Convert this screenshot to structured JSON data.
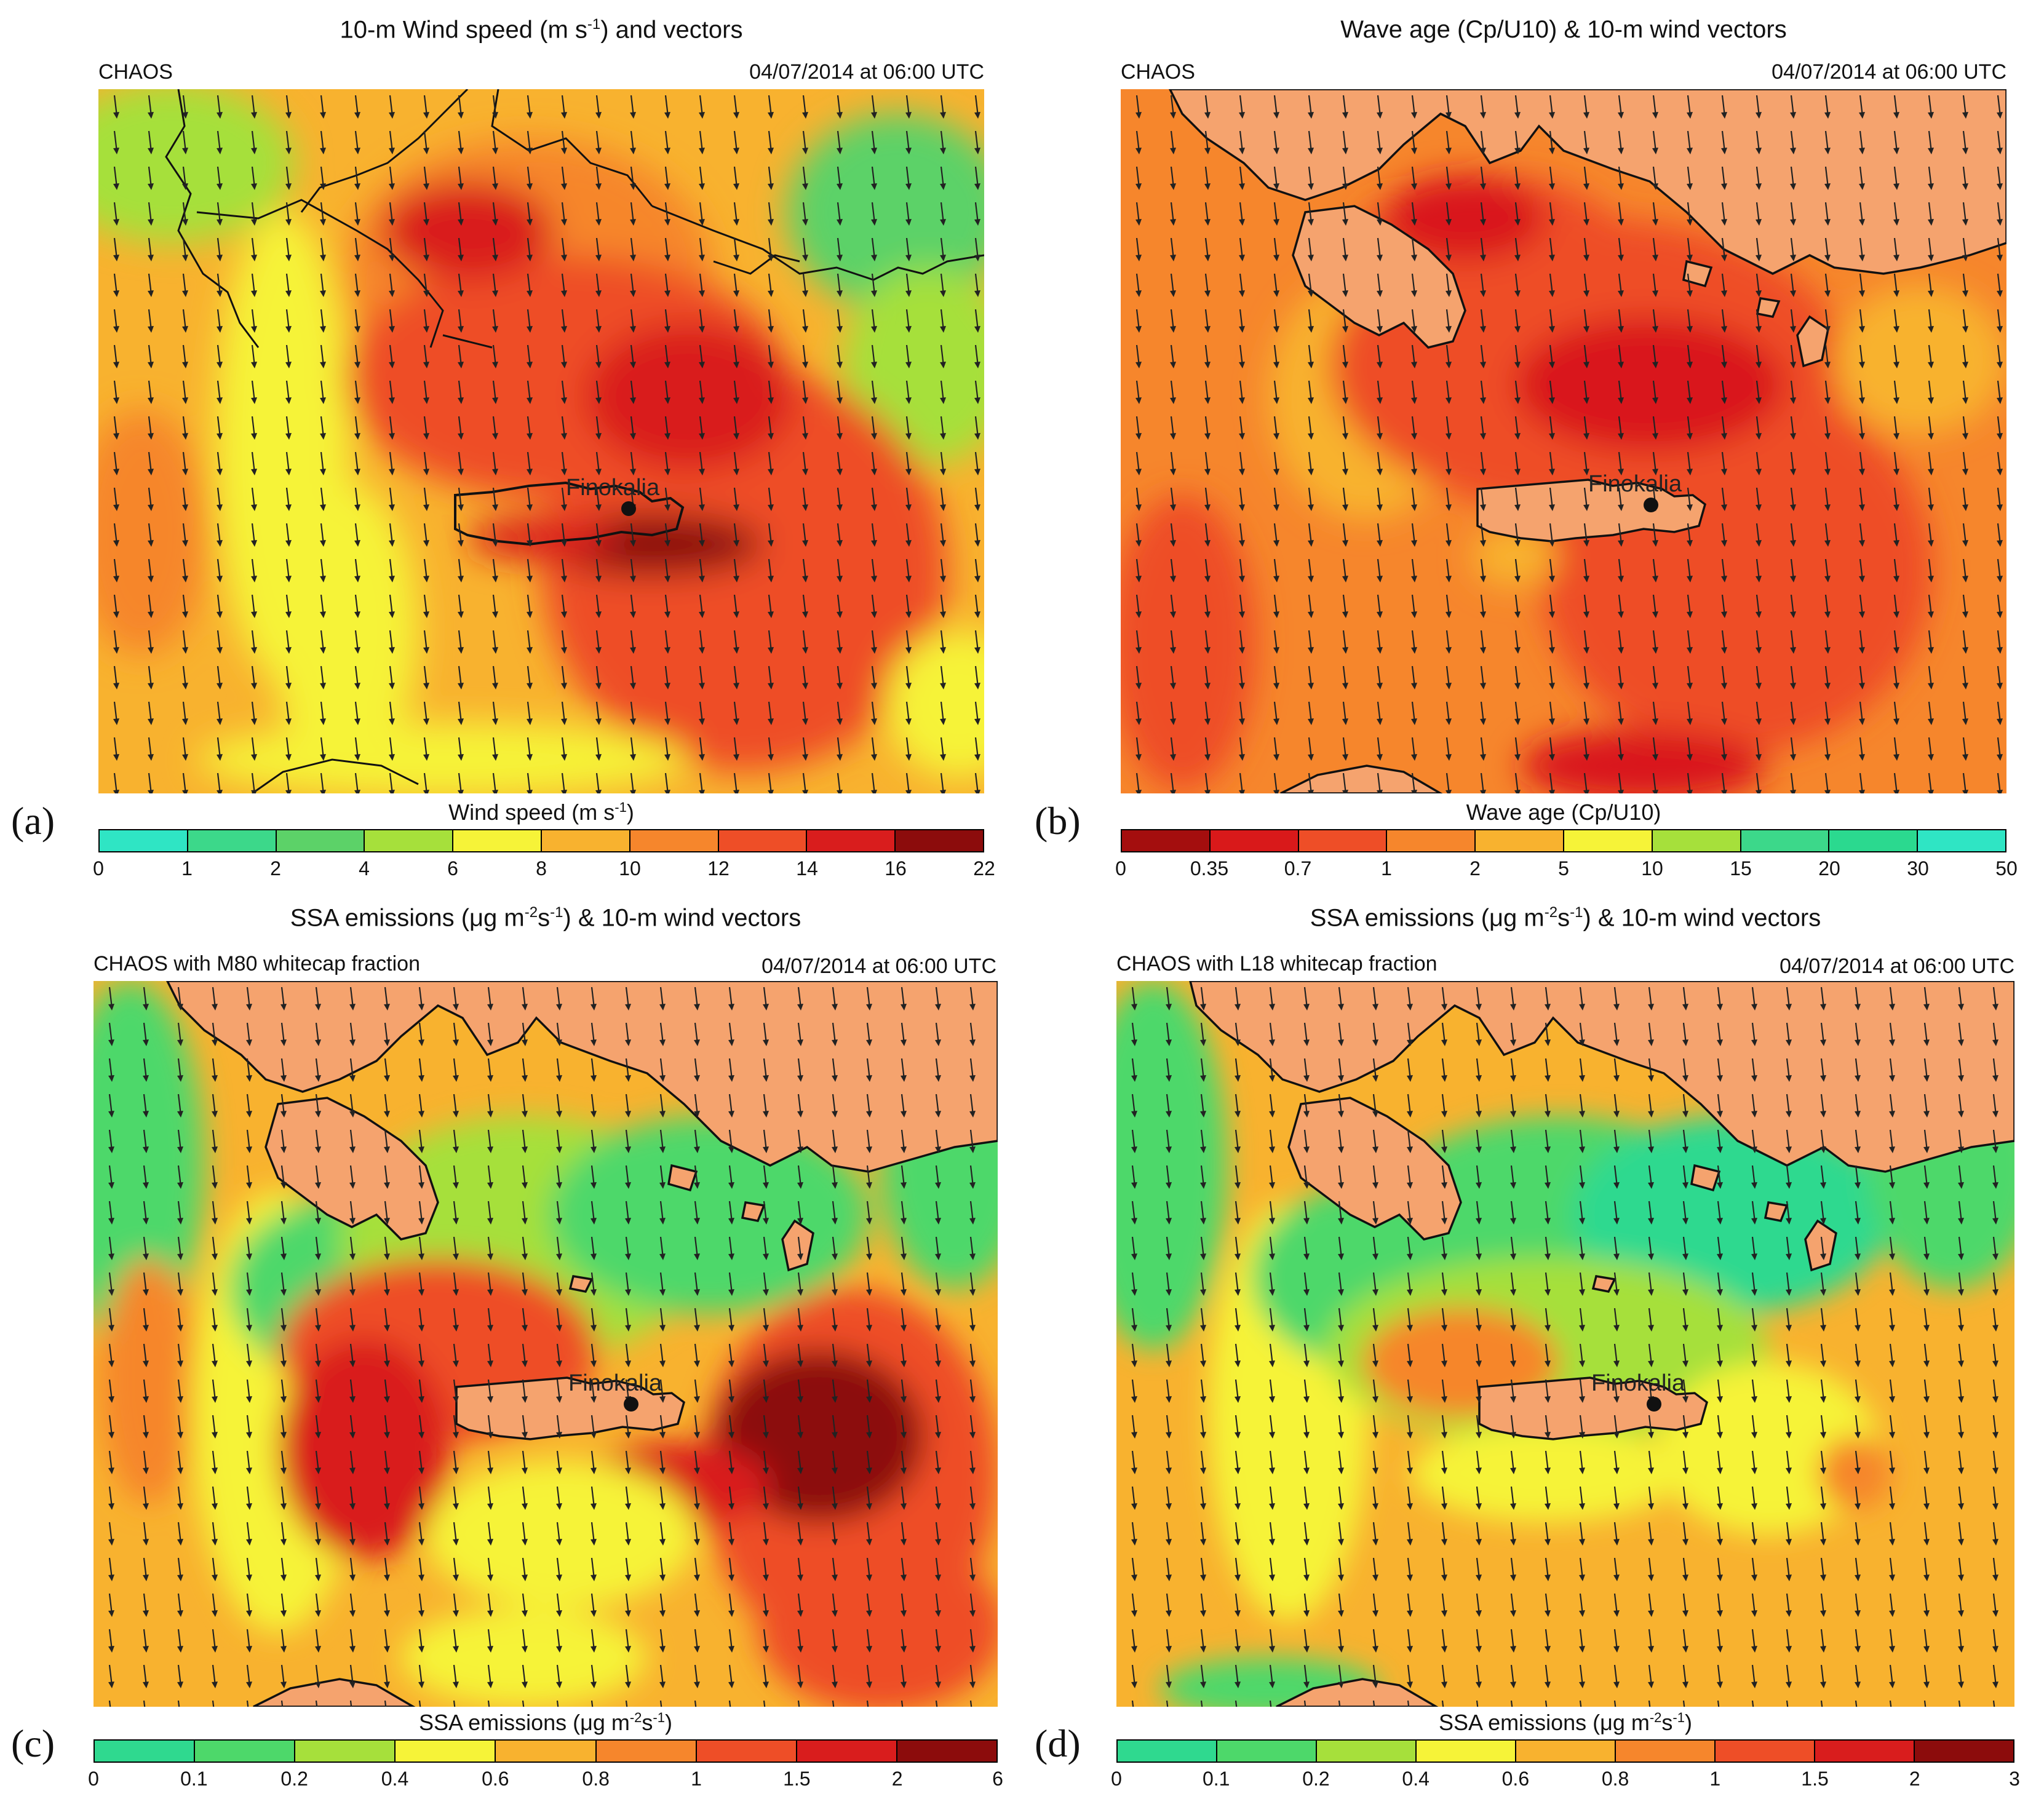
{
  "panels": [
    {
      "label": "(a)",
      "title_pre": "10-m Wind speed (m s",
      "title_sup": "-1",
      "title_post": ") and vectors",
      "model": "CHAOS",
      "date": "04/07/2014 at 06:00 UTC",
      "colorbar_title_pre": "Wind speed (m s",
      "colorbar_title_sup": "-1",
      "colorbar_title_post": ")",
      "ticks": [
        "0",
        "1",
        "2",
        "4",
        "6",
        "8",
        "10",
        "12",
        "14",
        "16",
        "22"
      ],
      "colors": [
        "#2fe5c4",
        "#3cd88a",
        "#5cd268",
        "#a6e03b",
        "#f6f338",
        "#f8b22f",
        "#f6862c",
        "#ee4e27",
        "#d91d1d",
        "#8c0c0c"
      ],
      "station": "Finokalia"
    },
    {
      "label": "(b)",
      "title_pre": "Wave age (Cp/U10) & 10-m wind vectors",
      "title_sup": "",
      "title_post": "",
      "model": "CHAOS",
      "date": "04/07/2014 at 06:00 UTC",
      "colorbar_title_pre": "Wave age (Cp/U10)",
      "colorbar_title_sup": "",
      "colorbar_title_post": "",
      "ticks": [
        "0",
        "0.35",
        "0.7",
        "1",
        "2",
        "5",
        "10",
        "15",
        "20",
        "30",
        "50"
      ],
      "colors": [
        "#a40e0e",
        "#d9191a",
        "#ee4e27",
        "#f6862c",
        "#f8b22f",
        "#f6f338",
        "#a6e03b",
        "#3cd88a",
        "#2bd98f",
        "#2fe5c4"
      ],
      "station": "Finokalia"
    },
    {
      "label": "(c)",
      "title_pre": "SSA emissions (μg m",
      "title_sup": "-2",
      "title_mid": "s",
      "title_sup2": "-1",
      "title_post": ") & 10-m wind vectors",
      "model": "CHAOS with M80 whitecap fraction",
      "date": "04/07/2014 at 06:00 UTC",
      "colorbar_title_pre": "SSA emissions (μg m",
      "colorbar_title_sup": "-2",
      "colorbar_title_mid": "s",
      "colorbar_title_sup2": "-1",
      "colorbar_title_post": ")",
      "ticks": [
        "0",
        "0.1",
        "0.2",
        "0.4",
        "0.6",
        "0.8",
        "1",
        "1.5",
        "2",
        "6"
      ],
      "colors": [
        "#2fd98f",
        "#4dd86a",
        "#a6e03b",
        "#f6f338",
        "#f8b22f",
        "#f6862c",
        "#ee4e27",
        "#d91d1d",
        "#8c0c0c"
      ],
      "station": "Finokalia"
    },
    {
      "label": "(d)",
      "title_pre": "SSA emissions (μg m",
      "title_sup": "-2",
      "title_mid": "s",
      "title_sup2": "-1",
      "title_post": ") & 10-m wind vectors",
      "model": "CHAOS with L18 whitecap fraction",
      "date": "04/07/2014 at 06:00 UTC",
      "colorbar_title_pre": "SSA emissions (μg m",
      "colorbar_title_sup": "-2",
      "colorbar_title_mid": "s",
      "colorbar_title_sup2": "-1",
      "colorbar_title_post": ")",
      "ticks": [
        "0",
        "0.1",
        "0.2",
        "0.4",
        "0.6",
        "0.8",
        "1",
        "1.5",
        "2",
        "3"
      ],
      "colors": [
        "#2fd98f",
        "#4dd86a",
        "#a6e03b",
        "#f6f338",
        "#f8b22f",
        "#f6862c",
        "#ee4e27",
        "#d91d1d",
        "#8c0c0c"
      ],
      "station": "Finokalia"
    }
  ]
}
